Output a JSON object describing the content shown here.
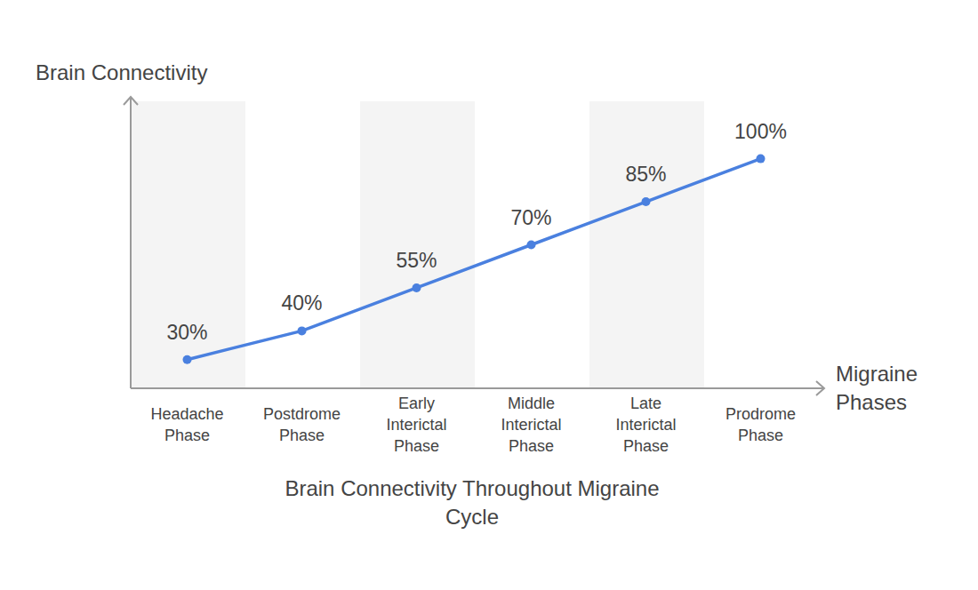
{
  "chart_data": {
    "type": "line",
    "title": "Brain Connectivity Throughout Migraine Cycle",
    "x_label": "Migraine Phases",
    "y_label": "Brain Connectivity",
    "categories": [
      "Headache Phase",
      "Postdrome Phase",
      "Early Interictal Phase",
      "Middle Interictal Phase",
      "Late Interictal Phase",
      "Prodrome Phase"
    ],
    "values": [
      30,
      40,
      55,
      70,
      85,
      100
    ],
    "value_labels": [
      "30%",
      "40%",
      "55%",
      "70%",
      "85%",
      "100%"
    ],
    "color": "#4a80df",
    "marker": "circle",
    "line_style": "solid",
    "ylim": [
      20,
      120
    ],
    "data_labels": true,
    "tick_labels": "x",
    "grid": false
  }
}
